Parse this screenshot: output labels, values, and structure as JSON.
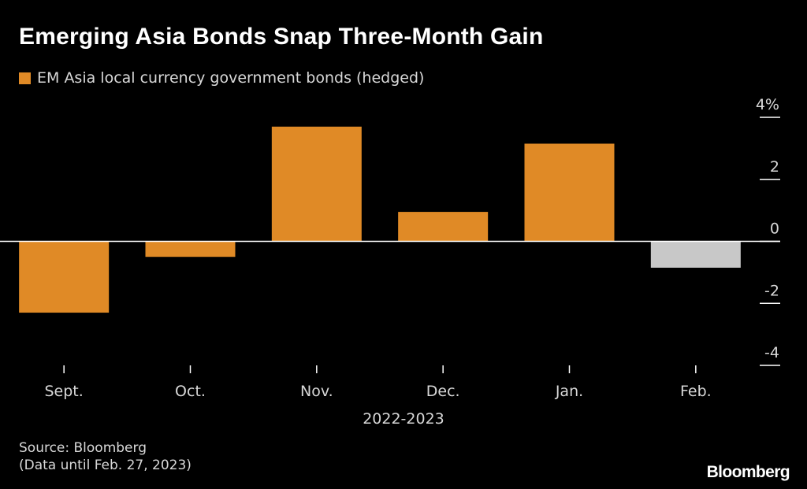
{
  "colors": {
    "background": "#000000",
    "bar": "#e08a26",
    "bar_latest": "#c8c8c8",
    "text": "#ffffff",
    "muted_text": "#d8d8d8",
    "axis": "#ffffff"
  },
  "chart_data": {
    "type": "bar",
    "title": "Emerging Asia Bonds Snap Three-Month Gain",
    "legend_position": "top-left",
    "series": [
      {
        "name": "EM Asia local currency government bonds (hedged)",
        "values": [
          -2.3,
          -0.5,
          3.7,
          0.95,
          3.15,
          -0.85
        ]
      }
    ],
    "categories": [
      "Sept.",
      "Oct.",
      "Nov.",
      "Dec.",
      "Jan.",
      "Feb."
    ],
    "xlabel": "2022-2023",
    "ylabel": "",
    "ylim": [
      -4,
      4
    ],
    "yticks": [
      {
        "value": 4,
        "label": "4%"
      },
      {
        "value": 2,
        "label": "2"
      },
      {
        "value": 0,
        "label": "0"
      },
      {
        "value": -2,
        "label": "-2"
      },
      {
        "value": -4,
        "label": "-4"
      }
    ],
    "y_axis_side": "right",
    "grid": false
  },
  "source": {
    "line1": "Source: Bloomberg",
    "line2": "(Data until Feb. 27, 2023)"
  },
  "brand": "Bloomberg"
}
